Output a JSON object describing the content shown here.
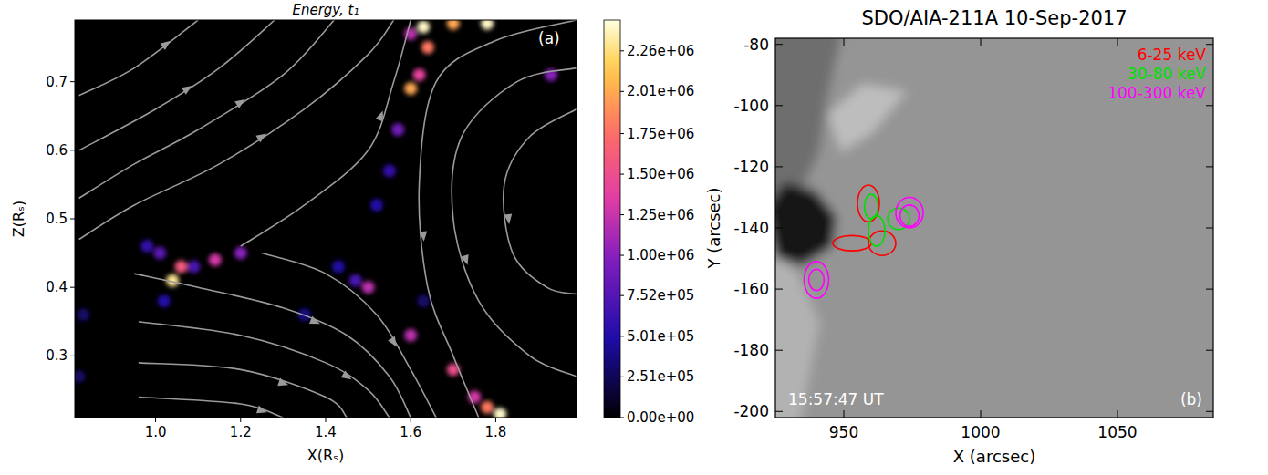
{
  "chart_data": [
    {
      "type": "heatmap",
      "title": "Energy, t₁",
      "x_label": "X(Rₛ)",
      "y_label": "Z(Rₛ)",
      "annotations": [
        "(a)"
      ],
      "xlim": [
        0.81,
        1.99
      ],
      "xticks": [
        {
          "value": 1.0,
          "label": "1.0"
        },
        1.2,
        1.4,
        1.6,
        1.8
      ],
      "ylim": [
        0.21,
        0.79
      ],
      "yticks": [
        0.3,
        0.4,
        0.5,
        0.6,
        0.7
      ],
      "hotspots": [
        [
          1.04,
          0.41,
          2300000
        ],
        [
          1.06,
          0.43,
          1600000
        ],
        [
          1.14,
          0.44,
          1300000
        ],
        [
          1.2,
          0.45,
          1000000
        ],
        [
          1.01,
          0.45,
          800000
        ],
        [
          0.98,
          0.46,
          600000
        ],
        [
          1.09,
          0.43,
          700000
        ],
        [
          1.02,
          0.38,
          500000
        ],
        [
          1.5,
          0.4,
          1200000
        ],
        [
          1.47,
          0.41,
          700000
        ],
        [
          1.43,
          0.43,
          500000
        ],
        [
          1.6,
          0.69,
          2000000
        ],
        [
          1.62,
          0.71,
          1400000
        ],
        [
          1.64,
          0.75,
          1800000
        ],
        [
          1.6,
          0.77,
          1200000
        ],
        [
          1.57,
          0.63,
          900000
        ],
        [
          1.55,
          0.57,
          600000
        ],
        [
          1.52,
          0.52,
          500000
        ],
        [
          1.63,
          0.78,
          2400000
        ],
        [
          1.7,
          0.785,
          2000000
        ],
        [
          1.78,
          0.785,
          2400000
        ],
        [
          1.93,
          0.71,
          1000000
        ],
        [
          1.6,
          0.33,
          1200000
        ],
        [
          1.7,
          0.28,
          1500000
        ],
        [
          1.75,
          0.24,
          1300000
        ],
        [
          1.78,
          0.225,
          1800000
        ],
        [
          1.81,
          0.215,
          2400000
        ],
        [
          0.83,
          0.36,
          300000
        ],
        [
          0.82,
          0.27,
          300000
        ],
        [
          1.35,
          0.36,
          400000
        ],
        [
          1.63,
          0.38,
          300000
        ]
      ],
      "streamlines": [
        [
          [
            0.82,
            0.47
          ],
          [
            0.95,
            0.52
          ],
          [
            1.15,
            0.58
          ],
          [
            1.35,
            0.66
          ],
          [
            1.5,
            0.74
          ],
          [
            1.56,
            0.79
          ]
        ],
        [
          [
            0.82,
            0.53
          ],
          [
            0.95,
            0.58
          ],
          [
            1.1,
            0.63
          ],
          [
            1.3,
            0.71
          ],
          [
            1.42,
            0.79
          ]
        ],
        [
          [
            0.82,
            0.6
          ],
          [
            1.0,
            0.66
          ],
          [
            1.15,
            0.72
          ],
          [
            1.28,
            0.79
          ]
        ],
        [
          [
            0.82,
            0.68
          ],
          [
            0.95,
            0.72
          ],
          [
            1.1,
            0.79
          ]
        ],
        [
          [
            1.2,
            0.46
          ],
          [
            1.35,
            0.52
          ],
          [
            1.5,
            0.6
          ],
          [
            1.56,
            0.7
          ],
          [
            1.6,
            0.79
          ]
        ],
        [
          [
            1.99,
            0.72
          ],
          [
            1.85,
            0.7
          ],
          [
            1.72,
            0.62
          ],
          [
            1.7,
            0.5
          ],
          [
            1.76,
            0.38
          ],
          [
            1.88,
            0.3
          ],
          [
            1.99,
            0.27
          ]
        ],
        [
          [
            1.99,
            0.66
          ],
          [
            1.88,
            0.62
          ],
          [
            1.82,
            0.55
          ],
          [
            1.84,
            0.45
          ],
          [
            1.92,
            0.4
          ],
          [
            1.99,
            0.39
          ]
        ],
        [
          [
            1.99,
            0.79
          ],
          [
            1.8,
            0.76
          ],
          [
            1.66,
            0.7
          ],
          [
            1.62,
            0.55
          ],
          [
            1.64,
            0.4
          ],
          [
            1.7,
            0.3
          ],
          [
            1.76,
            0.21
          ]
        ],
        [
          [
            0.95,
            0.42
          ],
          [
            1.1,
            0.4
          ],
          [
            1.3,
            0.37
          ],
          [
            1.45,
            0.33
          ],
          [
            1.55,
            0.27
          ],
          [
            1.6,
            0.21
          ]
        ],
        [
          [
            0.96,
            0.35
          ],
          [
            1.2,
            0.33
          ],
          [
            1.4,
            0.29
          ],
          [
            1.5,
            0.25
          ],
          [
            1.55,
            0.21
          ]
        ],
        [
          [
            0.96,
            0.29
          ],
          [
            1.2,
            0.28
          ],
          [
            1.4,
            0.24
          ],
          [
            1.45,
            0.21
          ]
        ],
        [
          [
            0.96,
            0.24
          ],
          [
            1.2,
            0.23
          ],
          [
            1.3,
            0.21
          ]
        ],
        [
          [
            1.25,
            0.45
          ],
          [
            1.4,
            0.42
          ],
          [
            1.52,
            0.36
          ],
          [
            1.6,
            0.28
          ],
          [
            1.66,
            0.21
          ]
        ]
      ],
      "colorbar": {
        "range": [
          0,
          2450000
        ],
        "ticks": [
          {
            "value": 0,
            "label": "0.00e+00"
          },
          {
            "value": 251000,
            "label": "2.51e+05"
          },
          {
            "value": 501000,
            "label": "5.01e+05"
          },
          {
            "value": 752000,
            "label": "7.52e+05"
          },
          {
            "value": 1000000,
            "label": "1.00e+06"
          },
          {
            "value": 1250000,
            "label": "1.25e+06"
          },
          {
            "value": 1500000,
            "label": "1.50e+06"
          },
          {
            "value": 1750000,
            "label": "1.75e+06"
          },
          {
            "value": 2010000,
            "label": "2.01e+06"
          },
          {
            "value": 2260000,
            "label": "2.26e+06"
          }
        ]
      }
    },
    {
      "type": "contour",
      "title": "SDO/AIA-211A 10-Sep-2017",
      "x_label": "X (arcsec)",
      "y_label": "Y (arcsec)",
      "annotations": [
        "15:57:47 UT",
        "(b)"
      ],
      "xlim": [
        925,
        1085
      ],
      "xticks": [
        950,
        1000,
        1050
      ],
      "ylim": [
        -202,
        -78
      ],
      "yticks": [
        -200,
        -180,
        -160,
        -140,
        -120,
        -100,
        -80
      ],
      "legend": "upper right",
      "series": [
        {
          "name": "6-25 keV",
          "color": "#ff0000",
          "contours": [
            [
              959,
              -132,
              4,
              6
            ],
            [
              953,
              -145,
              7,
              2.5
            ],
            [
              964,
              -145,
              5,
              4
            ]
          ]
        },
        {
          "name": "30-80 keV",
          "color": "#00e000",
          "contours": [
            [
              960,
              -133,
              2.5,
              4
            ],
            [
              962,
              -141,
              3,
              5
            ],
            [
              970,
              -137,
              4,
              3.5
            ]
          ]
        },
        {
          "name": "100-300 keV",
          "color": "#ff00ff",
          "contours": [
            [
              974,
              -135,
              5,
              5
            ],
            [
              974,
              -136,
              3.5,
              3.5
            ],
            [
              940,
              -157,
              4.5,
              6
            ],
            [
              940,
              -157,
              2.8,
              3.5
            ]
          ]
        }
      ]
    }
  ]
}
